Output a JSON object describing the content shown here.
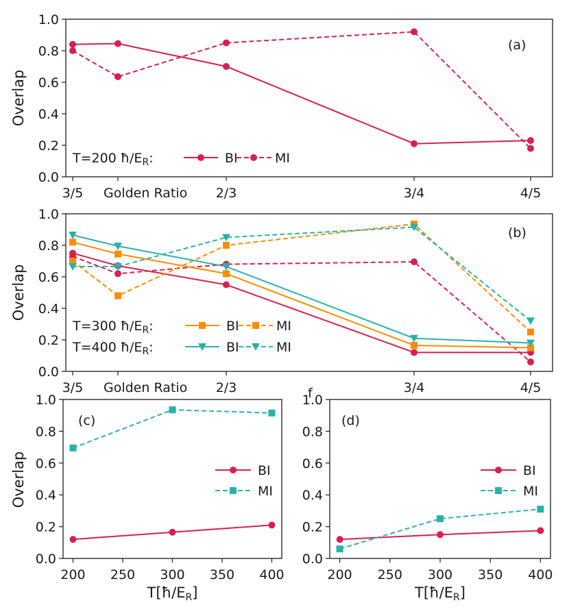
{
  "colors": {
    "red": "#d6204e",
    "orange": "#ff8c00",
    "teal": "#2ab1aa",
    "axis": "#1a1a1a"
  },
  "stray_text": "f",
  "chart_data": [
    {
      "id": "a",
      "panel_label": "(a)",
      "type": "line",
      "ylabel": "Overlap",
      "xlabel": "",
      "ylim": [
        0,
        1.0
      ],
      "yticks": [
        "0.0",
        "0.2",
        "0.4",
        "0.6",
        "0.8",
        "1.0"
      ],
      "categories": [
        "3/5",
        "Golden Ratio",
        "2/3",
        "3/4",
        "4/5"
      ],
      "category_x": [
        0.6,
        0.618,
        0.6667,
        0.75,
        0.8
      ],
      "legend": [
        {
          "prefix": "T=200 ħ/E",
          "sub": "R",
          "suffix": ":",
          "entries": [
            "BI",
            "MI"
          ]
        }
      ],
      "series": [
        {
          "name": "BI",
          "T": "200",
          "color": "red",
          "dash": false,
          "marker": "circle",
          "values": [
            0.84,
            0.845,
            0.7,
            0.21,
            0.23
          ]
        },
        {
          "name": "MI",
          "T": "200",
          "color": "red",
          "dash": true,
          "marker": "circle",
          "values": [
            0.8,
            0.635,
            0.85,
            0.92,
            0.18
          ]
        }
      ]
    },
    {
      "id": "b",
      "panel_label": "(b)",
      "type": "line",
      "ylabel": "Overlap",
      "xlabel": "",
      "ylim": [
        0,
        1.0
      ],
      "yticks": [
        "0.0",
        "0.2",
        "0.4",
        "0.6",
        "0.8",
        "1.0"
      ],
      "categories": [
        "3/5",
        "Golden Ratio",
        "2/3",
        "3/4",
        "4/5"
      ],
      "category_x": [
        0.6,
        0.618,
        0.6667,
        0.75,
        0.8
      ],
      "legend": [
        {
          "prefix": "T=300 ħ/E",
          "sub": "R",
          "suffix": ":",
          "entries": [
            "BI",
            "MI"
          ],
          "color": "orange",
          "marker": "square"
        },
        {
          "prefix": "T=400 ħ/E",
          "sub": "R",
          "suffix": ":",
          "entries": [
            "BI",
            "MI"
          ],
          "color": "teal",
          "marker": "triangle"
        }
      ],
      "series": [
        {
          "name": "BI",
          "T": "200",
          "color": "red",
          "dash": false,
          "marker": "circle",
          "values": [
            0.75,
            0.67,
            0.55,
            0.12,
            0.12
          ]
        },
        {
          "name": "MI",
          "T": "200",
          "color": "red",
          "dash": true,
          "marker": "circle",
          "values": [
            0.73,
            0.62,
            0.68,
            0.695,
            0.06
          ]
        },
        {
          "name": "BI",
          "T": "300",
          "color": "orange",
          "dash": false,
          "marker": "square",
          "values": [
            0.82,
            0.745,
            0.62,
            0.165,
            0.15
          ]
        },
        {
          "name": "MI",
          "T": "300",
          "color": "orange",
          "dash": true,
          "marker": "square",
          "values": [
            0.7,
            0.48,
            0.8,
            0.935,
            0.25
          ]
        },
        {
          "name": "BI",
          "T": "400",
          "color": "teal",
          "dash": false,
          "marker": "triangle",
          "values": [
            0.865,
            0.795,
            0.665,
            0.21,
            0.18
          ]
        },
        {
          "name": "MI",
          "T": "400",
          "color": "teal",
          "dash": true,
          "marker": "triangle",
          "values": [
            0.665,
            0.665,
            0.85,
            0.915,
            0.32
          ]
        }
      ]
    },
    {
      "id": "c",
      "panel_label": "(c)",
      "type": "line",
      "ylabel": "Overlap",
      "xlabel": "T[ħ/E",
      "xlabel_sub": "R",
      "xlabel_suffix": "]",
      "xlim": [
        190,
        410
      ],
      "xticks": [
        200,
        250,
        300,
        350,
        400
      ],
      "ylim": [
        0,
        1.0
      ],
      "yticks": [
        "0.0",
        "0.2",
        "0.4",
        "0.6",
        "0.8",
        "1.0"
      ],
      "legend": [
        {
          "entries": [
            "BI",
            "MI"
          ]
        }
      ],
      "x": [
        200,
        300,
        400
      ],
      "series": [
        {
          "name": "BI",
          "color": "red",
          "dash": false,
          "marker": "circle",
          "values": [
            0.12,
            0.165,
            0.21
          ]
        },
        {
          "name": "MI",
          "color": "teal",
          "dash": true,
          "marker": "square",
          "values": [
            0.695,
            0.935,
            0.915
          ]
        }
      ]
    },
    {
      "id": "d",
      "panel_label": "(d)",
      "type": "line",
      "ylabel": "",
      "xlabel": "T[ħ/E",
      "xlabel_sub": "R",
      "xlabel_suffix": "]",
      "xlim": [
        190,
        410
      ],
      "xticks": [
        200,
        250,
        300,
        350,
        400
      ],
      "ylim": [
        0,
        1.0
      ],
      "yticks": [
        "0.0",
        "0.2",
        "0.4",
        "0.6",
        "0.8",
        "1.0"
      ],
      "legend": [
        {
          "entries": [
            "BI",
            "MI"
          ]
        }
      ],
      "x": [
        200,
        300,
        400
      ],
      "series": [
        {
          "name": "BI",
          "color": "red",
          "dash": false,
          "marker": "circle",
          "values": [
            0.12,
            0.15,
            0.175
          ]
        },
        {
          "name": "MI",
          "color": "teal",
          "dash": true,
          "marker": "square",
          "values": [
            0.06,
            0.25,
            0.31
          ]
        }
      ]
    }
  ]
}
